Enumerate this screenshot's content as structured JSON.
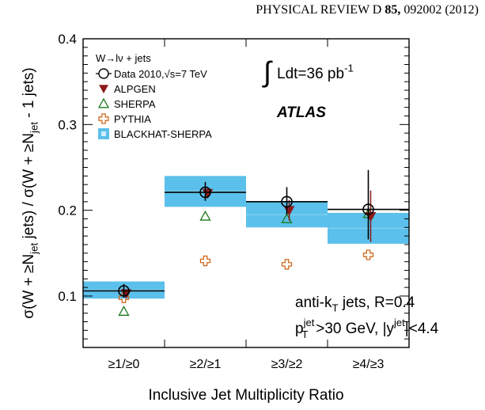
{
  "header": {
    "journal": "PHYSICAL REVIEW D",
    "volume": "85,",
    "article": "092002 (2012)"
  },
  "chart_data": {
    "type": "scatter",
    "xlabel": "Inclusive Jet Multiplicity Ratio",
    "ylabel": {
      "parts": [
        {
          "t": "σ(W + ≥N"
        },
        {
          "t": "jet",
          "sub": true
        },
        {
          "t": " jets) / σ(W + ≥N"
        },
        {
          "t": "jet",
          "sub": true
        },
        {
          "t": " - 1 jets)"
        }
      ]
    },
    "categories": [
      "≥1/≥0",
      "≥2/≥1",
      "≥3/≥2",
      "≥4/≥3"
    ],
    "ylim": [
      0.04,
      0.4
    ],
    "yticks": [
      0.1,
      0.2,
      0.3,
      0.4
    ],
    "ytick_labels": [
      "0.1",
      "0.2",
      "0.3",
      "0.4"
    ],
    "legend_title": "W→lν + jets",
    "series": [
      {
        "name": "Data 2010,√s=7 TeV",
        "marker": "open-circle",
        "color": "#000000",
        "values": [
          0.106,
          0.221,
          0.21,
          0.201
        ],
        "err_low": [
          0.008,
          0.01,
          0.015,
          0.035
        ],
        "err_high": [
          0.008,
          0.012,
          0.017,
          0.046
        ]
      },
      {
        "name": "ALPGEN",
        "marker": "down-triangle",
        "color": "#8b1a1a",
        "values": [
          0.103,
          0.22,
          0.2,
          0.193
        ],
        "err_low": [
          0.003,
          0.006,
          0.012,
          0.03
        ],
        "err_high": [
          0.003,
          0.006,
          0.012,
          0.03
        ]
      },
      {
        "name": "SHERPA",
        "marker": "open-triangle",
        "color": "#1e7a1e",
        "values": [
          0.082,
          0.193,
          0.19,
          0.196
        ]
      },
      {
        "name": "PYTHIA",
        "marker": "open-cross",
        "color": "#d2691e",
        "values": [
          0.098,
          0.141,
          0.137,
          0.148
        ]
      },
      {
        "name": "BLACKHAT-SHERPA",
        "marker": "band",
        "color": "#5bc0eb",
        "values": [
          0.107,
          0.222,
          0.195,
          0.179
        ],
        "band_low": [
          0.097,
          0.204,
          0.18,
          0.161
        ],
        "band_high": [
          0.117,
          0.24,
          0.21,
          0.197
        ]
      }
    ],
    "annotations": {
      "lumi_prefix": "∫",
      "lumi_text": "Ldt=36 pb",
      "lumi_sup": "-1",
      "atlas": "ATLAS",
      "jets_line1": "anti-k",
      "jets_line1_sub": "T",
      "jets_line1_rest": " jets, R=0.4",
      "jets_line2_a": "p",
      "jets_line2_sup": "jet",
      "jets_line2_sub": "T",
      "jets_line2_b": ">30 GeV, |y",
      "jets_line2_sup2": "jet",
      "jets_line2_c": "|<4.4"
    },
    "legend_position": "top-left",
    "grid": false
  }
}
